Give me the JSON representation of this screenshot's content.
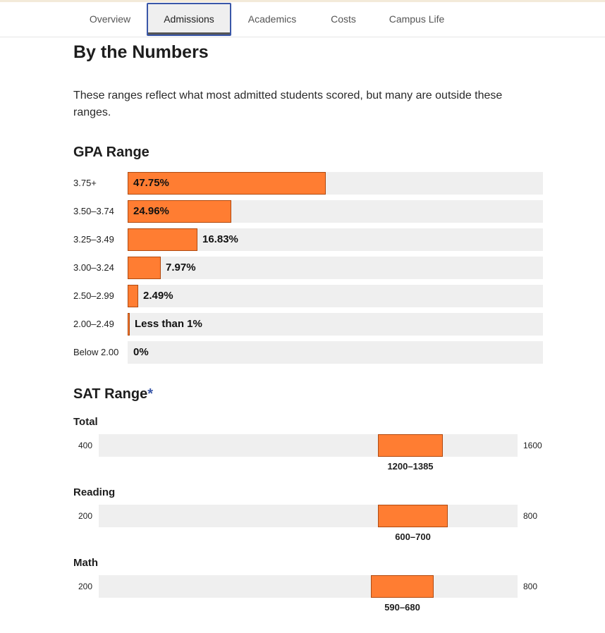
{
  "tabs": [
    {
      "label": "Overview"
    },
    {
      "label": "Admissions"
    },
    {
      "label": "Academics"
    },
    {
      "label": "Costs"
    },
    {
      "label": "Campus Life"
    }
  ],
  "page": {
    "title": "By the Numbers",
    "intro": "These ranges reflect what most admitted students scored, but many are outside these ranges."
  },
  "gpa": {
    "heading": "GPA Range"
  },
  "sat": {
    "heading": "SAT Range",
    "asterisk": "*"
  },
  "chart_data": [
    {
      "type": "bar",
      "orientation": "horizontal",
      "title": "GPA Range",
      "categories": [
        "3.75+",
        "3.50–3.74",
        "3.25–3.49",
        "3.00–3.24",
        "2.50–2.99",
        "2.00–2.49",
        "Below 2.00"
      ],
      "values": [
        47.75,
        24.96,
        16.83,
        7.97,
        2.49,
        0.5,
        0
      ],
      "value_labels": [
        "47.75%",
        "24.96%",
        "16.83%",
        "7.97%",
        "2.49%",
        "Less than 1%",
        "0%"
      ],
      "xlim": [
        0,
        100
      ]
    },
    {
      "type": "range",
      "title": "SAT Range",
      "series": [
        {
          "name": "Total",
          "min": 400,
          "max": 1600,
          "low": 1200,
          "high": 1385,
          "range_label": "1200–1385",
          "min_label": "400",
          "max_label": "1600"
        },
        {
          "name": "Reading",
          "min": 200,
          "max": 800,
          "low": 600,
          "high": 700,
          "range_label": "600–700",
          "min_label": "200",
          "max_label": "800"
        },
        {
          "name": "Math",
          "min": 200,
          "max": 800,
          "low": 590,
          "high": 680,
          "range_label": "590–680",
          "min_label": "200",
          "max_label": "800"
        }
      ]
    }
  ],
  "colors": {
    "bar_fill": "#ff7d32",
    "bar_border": "#b04a10",
    "track": "#efefef",
    "accent": "#3a57a8"
  }
}
